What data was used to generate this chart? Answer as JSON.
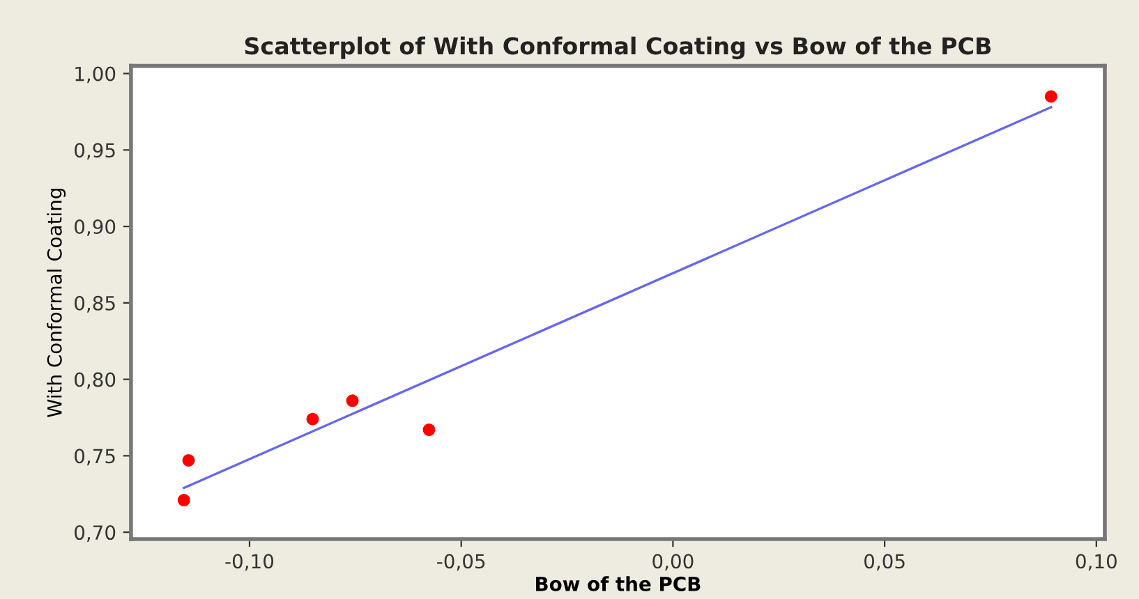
{
  "chart_data": {
    "type": "scatter",
    "title": "Scatterplot of With Conformal Coating vs Bow of the PCB",
    "xlabel": "Bow of the PCB",
    "ylabel": "With Conformal Coating",
    "series": [
      {
        "type": "scatter",
        "color": "#ff0000",
        "x": [
          -0.1155,
          -0.1144,
          -0.0851,
          -0.0757,
          -0.0576,
          0.0893
        ],
        "values": [
          0.721,
          0.747,
          0.774,
          0.786,
          0.767,
          0.985
        ],
        "marker": "circle"
      },
      {
        "type": "line",
        "color": "#6666ee",
        "x": [
          -0.1155,
          0.0893
        ],
        "values": [
          0.729,
          0.978
        ],
        "marker": "none",
        "line_style": "solid"
      }
    ],
    "xlim": [
      -0.128,
      0.102
    ],
    "ylim": [
      0.6955,
      1.005
    ],
    "xticks": [
      {
        "value": -0.1,
        "label": "-0,10"
      },
      {
        "value": -0.05,
        "label": "-0,05"
      },
      {
        "value": 0,
        "label": "0,00"
      },
      {
        "value": 0.05,
        "label": "0,05"
      },
      {
        "value": 0.1,
        "label": "0,10"
      }
    ],
    "yticks": [
      {
        "value": 0.7,
        "label": "0,70"
      },
      {
        "value": 0.75,
        "label": "0,75"
      },
      {
        "value": 0.8,
        "label": "0,80"
      },
      {
        "value": 0.85,
        "label": "0,85"
      },
      {
        "value": 0.9,
        "label": "0,90"
      },
      {
        "value": 0.95,
        "label": "0,95"
      },
      {
        "value": 1.0,
        "label": "1,00"
      }
    ],
    "grid": false,
    "legend": false
  }
}
